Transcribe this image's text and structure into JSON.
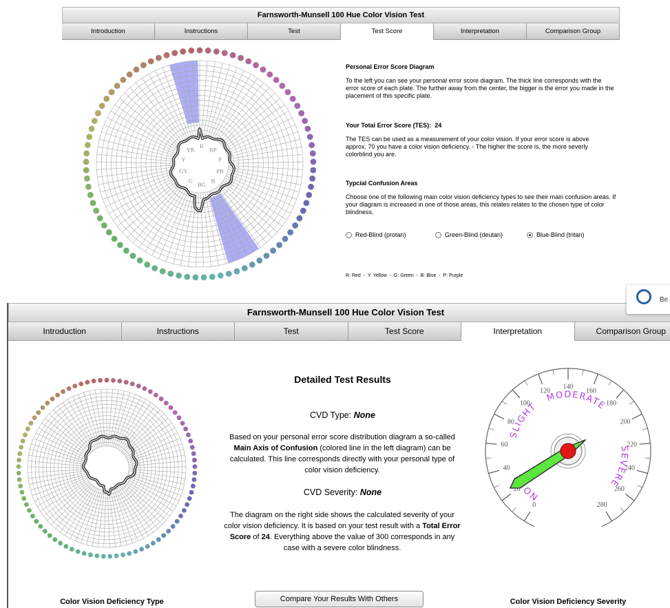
{
  "top": {
    "title": "Farnsworth-Munsell 100 Hue Color Vision Test",
    "tabs": [
      "Introduction",
      "Instructions",
      "Test",
      "Test Score",
      "Interpretation",
      "Comparison Group"
    ],
    "active_tab": 3,
    "hue_labels": [
      "R",
      "RP",
      "P",
      "PB",
      "B",
      "BG",
      "G",
      "GY",
      "Y",
      "YR"
    ],
    "diagram_title": "Personal Error Score Diagram",
    "diagram_text": "To the left you can see your personal error score diagram. The thick line corresponds with the error score of each plate. The further away from the center, the bigger is the error you made in the placement of this specific plate.",
    "tes_label": "Your Total Error Score (TES):",
    "tes": 24,
    "tes_text": "The TES can be used as a measurement of your color vision. If your error score is above approx. 70 you have a color vision deficiency. - The higher the score is, the more severly colorblind you are.",
    "confusion_title": "Typcial Confusion Areas",
    "confusion_text": "Choose one of the following main color vision deficiency types to see their main confusion areas. If your diagram is increased in one of those areas, this relates relates to the chosen type of color blindness.",
    "options": [
      "Red-Blind (protan)",
      "Green-Blind (deutan)",
      "Blue-Blind (tritan)"
    ],
    "selected_option": 2,
    "legend": "R: Red  -  Y: Yellow  -  G: Green  -  B: Blue  -  P: Purple"
  },
  "bottom": {
    "title": "Farnsworth-Munsell 100 Hue Color Vision Test",
    "tabs": [
      "Introduction",
      "Instructions",
      "Test",
      "Test Score",
      "Interpretation",
      "Comparison Group"
    ],
    "active_tab": 4,
    "heading": "Detailed Test Results",
    "type_label": "CVD Type:",
    "type_value": "None",
    "type_text": [
      "Based on your personal error score distribution diagram a so-called ",
      "Main Axis of Confusion",
      " (colored line in the left diagram) can be calculated. This line corresponds directly with your personal type of color vision deficiency."
    ],
    "severity_label": "CVD Severity:",
    "severity_value": "None",
    "severity_text": [
      "The diagram on the right side shows the calculated severity of your color vision deficiency. It is based on your test result with a ",
      "Total Error Score",
      " of ",
      "24",
      ". Everything above the value of 300 corresponds in any case with a severe color blindness."
    ],
    "button": "Compare Your Results With Others",
    "left_caption": "Color Vision Deficiency Type",
    "right_caption": "Color Vision Deficiency Severity",
    "gauge": {
      "ticks": [
        0,
        20,
        40,
        60,
        80,
        100,
        120,
        140,
        160,
        180,
        200,
        220,
        240,
        260,
        280
      ],
      "zones": [
        "NONE",
        "SLIGHT",
        "MODERATE",
        "SEVERE"
      ],
      "value": 24
    },
    "popup": "Be"
  }
}
